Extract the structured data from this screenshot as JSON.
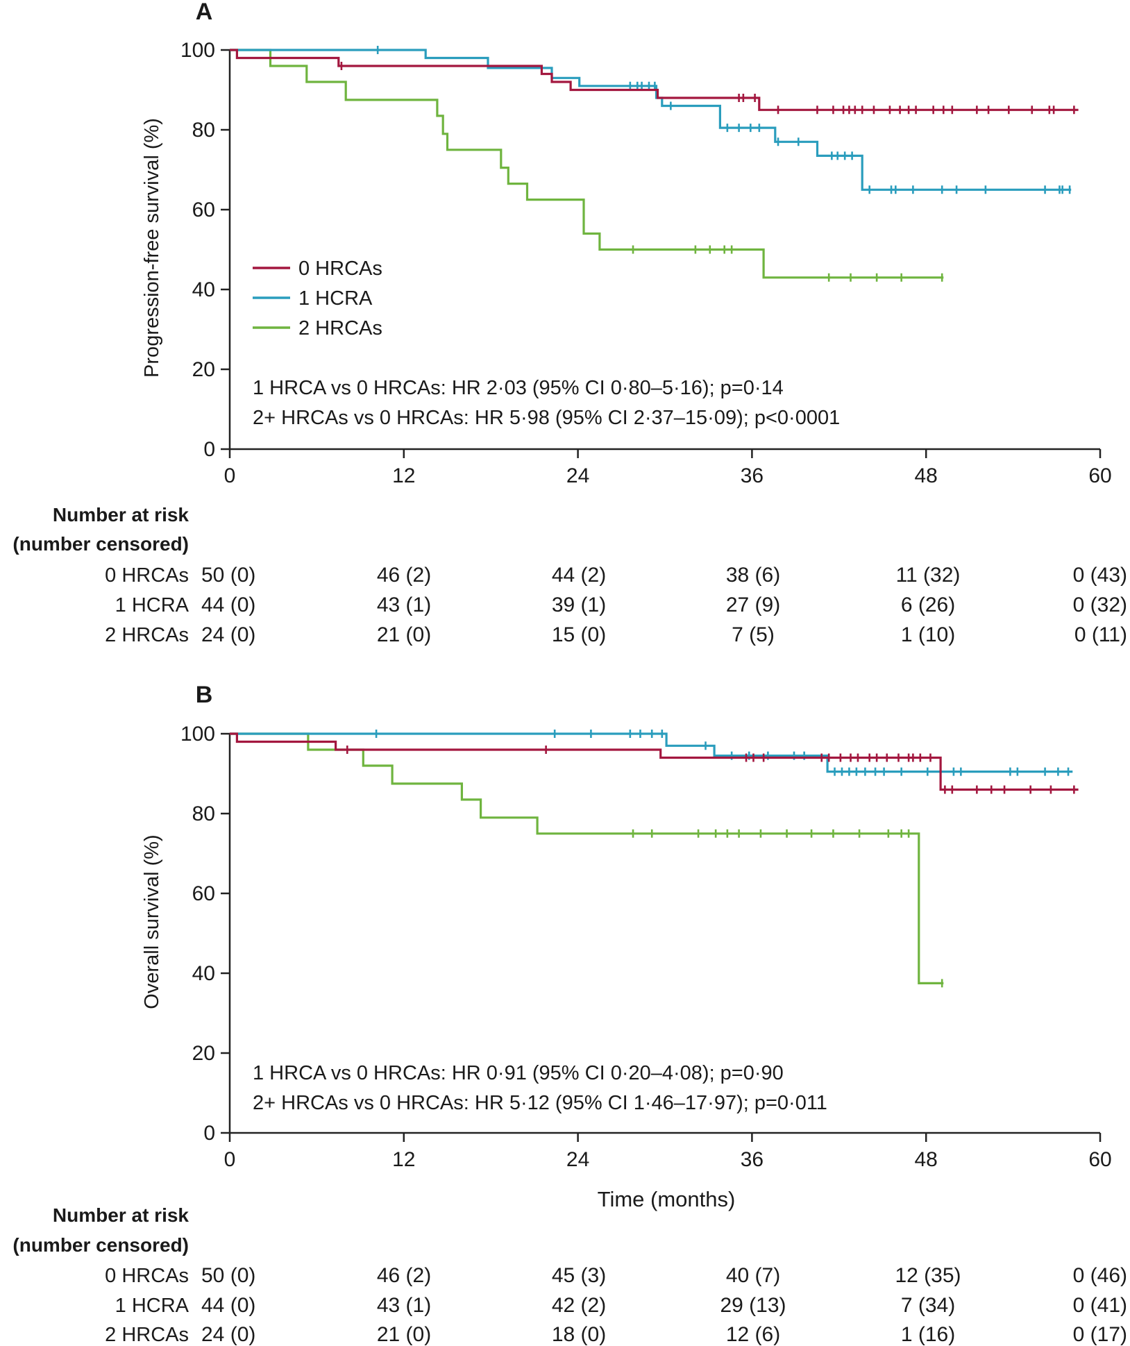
{
  "chart_data": [
    {
      "type": "line",
      "panel": "A",
      "ylabel": "Progression-free survival (%)",
      "xlabel": "",
      "xlim": [
        0,
        60
      ],
      "ylim": [
        0,
        100
      ],
      "xticks": [
        0,
        12,
        24,
        36,
        48,
        60
      ],
      "yticks": [
        0,
        20,
        40,
        60,
        80,
        100
      ],
      "legend_position": "middle-left",
      "legend": [
        "0 HRCAs",
        "1 HCRA",
        "2 HRCAs"
      ],
      "stats": [
        "1 HRCA vs 0 HRCAs: HR 2·03 (95% CI 0·80–5·16); p=0·14",
        "2+ HRCAs vs 0 HRCAs: HR 5·98 (95% CI 2·37–15·09); p<0·0001"
      ],
      "series": [
        {
          "name": "0 HRCAs",
          "color": "#a3173f",
          "steps": [
            [
              0,
              100
            ],
            [
              0.5,
              98
            ],
            [
              7.5,
              96
            ],
            [
              21.5,
              94
            ],
            [
              22.2,
              92
            ],
            [
              23.5,
              90
            ],
            [
              29.5,
              88
            ],
            [
              36.5,
              85
            ],
            [
              58.5,
              85
            ]
          ],
          "censored": [
            7.7,
            35.1,
            35.4,
            36.2,
            37.8,
            40.5,
            41.6,
            42.3,
            42.7,
            43.1,
            43.6,
            44.4,
            45.5,
            46.2,
            46.8,
            47.3,
            48.5,
            49.2,
            49.8,
            51.5,
            52.3,
            53.7,
            55.3,
            56.5,
            56.8,
            58.2
          ]
        },
        {
          "name": "1 HCRA",
          "color": "#2a9dbd",
          "steps": [
            [
              0,
              100
            ],
            [
              13.5,
              98
            ],
            [
              17.8,
              95.5
            ],
            [
              22.2,
              93
            ],
            [
              24.1,
              91
            ],
            [
              29.4,
              88
            ],
            [
              29.8,
              86
            ],
            [
              33.8,
              80.5
            ],
            [
              37.6,
              77
            ],
            [
              40.5,
              73.5
            ],
            [
              43.6,
              65
            ],
            [
              58,
              65
            ]
          ],
          "censored": [
            10.2,
            27.6,
            28.1,
            28.4,
            28.9,
            29.3,
            30.4,
            34.3,
            35.1,
            35.9,
            36.5,
            37.8,
            39.2,
            41.5,
            41.9,
            42.4,
            42.9,
            44.1,
            45.6,
            45.9,
            47.1,
            49.1,
            50.1,
            52.1,
            56.2,
            57.2,
            57.4,
            57.9
          ]
        },
        {
          "name": "2 HRCAs",
          "color": "#6fb43f",
          "steps": [
            [
              0,
              100
            ],
            [
              2.8,
              96
            ],
            [
              5.3,
              92
            ],
            [
              8,
              87.5
            ],
            [
              14.3,
              83.5
            ],
            [
              14.7,
              79
            ],
            [
              15,
              75
            ],
            [
              18.7,
              70.5
            ],
            [
              19.2,
              66.5
            ],
            [
              20.5,
              62.5
            ],
            [
              24.4,
              54
            ],
            [
              25.5,
              50
            ],
            [
              36.8,
              43
            ],
            [
              49.2,
              43
            ]
          ],
          "censored": [
            27.8,
            32.1,
            33.1,
            34.1,
            34.6,
            41.3,
            42.8,
            44.6,
            46.3,
            49.1
          ]
        }
      ],
      "risk_table": {
        "header_line1": "Number at risk",
        "header_line2": "(number censored)",
        "rows": [
          {
            "group": "0 HRCAs",
            "values": [
              "50 (0)",
              "46 (2)",
              "44 (2)",
              "38 (6)",
              "11 (32)",
              "0 (43)"
            ]
          },
          {
            "group": "1 HCRA",
            "values": [
              "44 (0)",
              "43 (1)",
              "39 (1)",
              "27 (9)",
              "6 (26)",
              "0 (32)"
            ]
          },
          {
            "group": "2 HRCAs",
            "values": [
              "24 (0)",
              "21 (0)",
              "15 (0)",
              "7 (5)",
              "1 (10)",
              "0 (11)"
            ]
          }
        ]
      }
    },
    {
      "type": "line",
      "panel": "B",
      "ylabel": "Overall survival (%)",
      "xlabel": "Time (months)",
      "xlim": [
        0,
        60
      ],
      "ylim": [
        0,
        100
      ],
      "xticks": [
        0,
        12,
        24,
        36,
        48,
        60
      ],
      "yticks": [
        0,
        20,
        40,
        60,
        80,
        100
      ],
      "stats": [
        "1 HRCA vs 0 HRCAs: HR 0·91 (95% CI 0·20–4·08); p=0·90",
        "2+ HRCAs vs 0 HRCAs: HR 5·12 (95% CI 1·46–17·97); p=0·011"
      ],
      "series": [
        {
          "name": "0 HRCAs",
          "color": "#a3173f",
          "steps": [
            [
              0,
              100
            ],
            [
              0.5,
              98
            ],
            [
              7.3,
              96
            ],
            [
              29.7,
              94
            ],
            [
              49,
              86
            ],
            [
              58.5,
              86
            ]
          ],
          "censored": [
            8.1,
            21.8,
            35.6,
            36.1,
            36.8,
            40.8,
            41.3,
            42.1,
            42.8,
            43.3,
            44.1,
            44.6,
            45.3,
            46.1,
            46.8,
            47.1,
            47.6,
            48.3,
            49.3,
            49.8,
            51.5,
            52.5,
            53.4,
            55.2,
            56.6,
            58.2
          ]
        },
        {
          "name": "1 HCRA",
          "color": "#2a9dbd",
          "steps": [
            [
              0,
              100
            ],
            [
              30.1,
              97
            ],
            [
              33.4,
              94.5
            ],
            [
              41.2,
              90.5
            ],
            [
              58.1,
              90.5
            ]
          ],
          "censored": [
            10.1,
            22.4,
            24.9,
            27.6,
            28.3,
            29.1,
            29.8,
            32.8,
            34.6,
            35.8,
            37.1,
            38.9,
            39.6,
            41.7,
            42.2,
            42.7,
            43.2,
            43.8,
            44.5,
            45.1,
            46.3,
            48.1,
            49.9,
            50.4,
            53.8,
            54.3,
            56.2,
            57.1,
            57.8
          ]
        },
        {
          "name": "2 HRCAs",
          "color": "#6fb43f",
          "steps": [
            [
              0,
              100
            ],
            [
              5.4,
              96
            ],
            [
              9.2,
              92
            ],
            [
              11.2,
              87.5
            ],
            [
              16,
              83.5
            ],
            [
              17.3,
              79
            ],
            [
              21.2,
              75
            ],
            [
              47.5,
              37.5
            ],
            [
              49.2,
              37.5
            ]
          ],
          "censored": [
            27.8,
            29.1,
            32.3,
            33.5,
            34.3,
            35.1,
            36.6,
            38.4,
            40.1,
            41.6,
            43.4,
            45.4,
            46.3,
            46.8,
            49.1
          ]
        }
      ],
      "risk_table": {
        "header_line1": "Number at risk",
        "header_line2": "(number censored)",
        "rows": [
          {
            "group": "0 HRCAs",
            "values": [
              "50 (0)",
              "46 (2)",
              "45 (3)",
              "40 (7)",
              "12 (35)",
              "0 (46)"
            ]
          },
          {
            "group": "1 HCRA",
            "values": [
              "44 (0)",
              "43 (1)",
              "42 (2)",
              "29 (13)",
              "7 (34)",
              "0 (41)"
            ]
          },
          {
            "group": "2 HRCAs",
            "values": [
              "24 (0)",
              "21 (0)",
              "18 (0)",
              "12 (6)",
              "1 (16)",
              "0 (17)"
            ]
          }
        ]
      }
    }
  ]
}
